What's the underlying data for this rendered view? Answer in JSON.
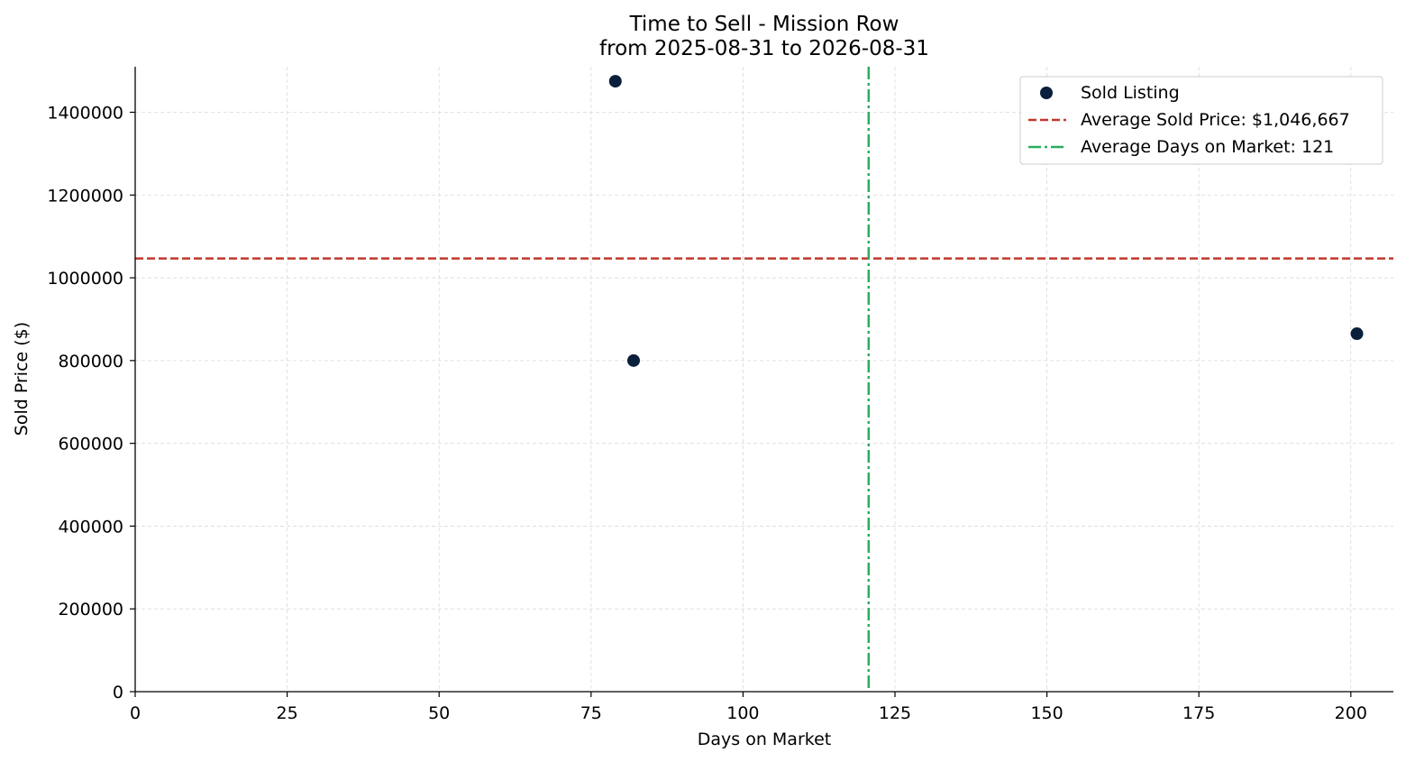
{
  "chart_data": {
    "type": "scatter",
    "title": "Time to Sell - Mission Row",
    "subtitle": "from 2025-08-31 to 2026-08-31",
    "xlabel": "Days on Market",
    "ylabel": "Sold Price ($)",
    "xlim": [
      0,
      207
    ],
    "ylim": [
      0,
      1510000
    ],
    "xticks": [
      0,
      25,
      50,
      75,
      100,
      125,
      150,
      175,
      200
    ],
    "yticks": [
      0,
      200000,
      400000,
      600000,
      800000,
      1000000,
      1200000,
      1400000
    ],
    "grid": true,
    "legend_position": "top-right",
    "series": [
      {
        "name": "Sold Listing",
        "color": "#0a1f3c",
        "points": [
          {
            "x": 79,
            "y": 1475000
          },
          {
            "x": 82,
            "y": 800000
          },
          {
            "x": 201,
            "y": 865000
          }
        ]
      }
    ],
    "reference_lines": [
      {
        "name": "Average Sold Price: $1,046,667",
        "orientation": "horizontal",
        "value": 1046667,
        "color": "#c0392b",
        "style": "dashed"
      },
      {
        "name": "Average Days on Market: 121",
        "orientation": "vertical",
        "value": 120.67,
        "color": "#27ae60",
        "style": "dashdot"
      }
    ]
  }
}
